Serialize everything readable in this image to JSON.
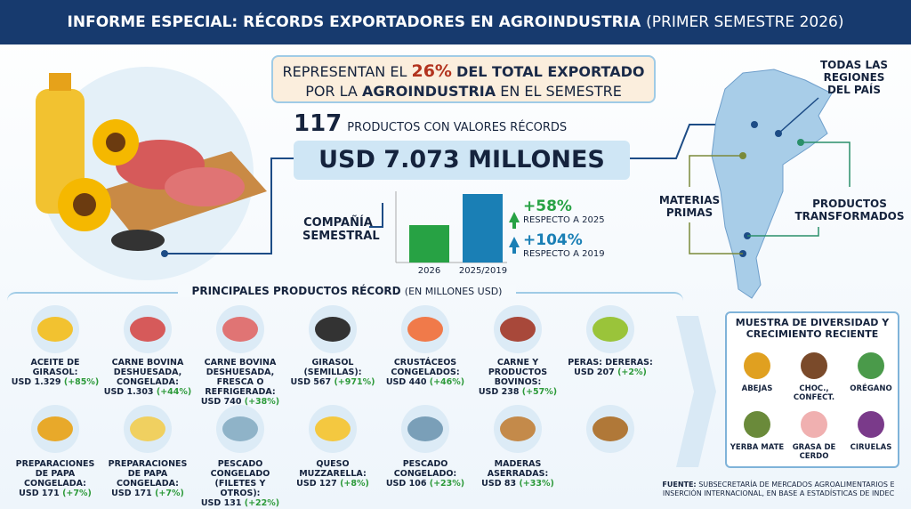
{
  "header": {
    "title": "INFORME ESPECIAL: RÉCORDS EXPORTADORES EN AGROINDUSTRIA",
    "subtitle": "(PRIMER SEMESTRE 2026)"
  },
  "highlight": {
    "line1": [
      "REPRESENTAN EL",
      "26%",
      "DEL TOTAL EXPORTADO"
    ],
    "line2": [
      "POR LA",
      "AGROINDUSTRIA",
      "EN EL SEMESTRE"
    ]
  },
  "summary": {
    "count": "117",
    "count_label": "PRODUCTOS CON VALORES RÉCORDS",
    "total": "USD 7.073 MILLONES"
  },
  "comparison": {
    "label": "COMPAÑÍA SEMESTRAL",
    "categories": [
      "2026",
      "2025/2019"
    ],
    "changes": [
      {
        "value": "+58%",
        "note": "RESPECTO A 2025"
      },
      {
        "value": "+104%",
        "note": "RESPECTO A 2019"
      }
    ]
  },
  "map": {
    "regions": "TODAS LAS REGIONES DEL PAÍS",
    "raw": "MATERIAS PRIMAS",
    "processed": "PRODUCTOS TRANSFORMADOS"
  },
  "products": {
    "title": "PRINCIPALES PRODUCTOS RÉCORD",
    "unit": "(EN MILLONES USD)",
    "items": [
      {
        "name": "ACEITE DE GIRASOL:",
        "value": "USD 1.329",
        "change": "(+85%)"
      },
      {
        "name": "CARNE BOVINA DESHUESADA, CONGELADA:",
        "value": "USD 1.303",
        "change": "(+44%)"
      },
      {
        "name": "CARNE BOVINA DESHUESADA, FRESCA O REFRIGERADA:",
        "value": "USD 740",
        "change": "(+38%)"
      },
      {
        "name": "GIRASOL (SEMILLAS):",
        "value": "USD 567",
        "change": "(+971%)"
      },
      {
        "name": "CRUSTÁCEOS CONGELADOS:",
        "value": "USD 440",
        "change": "(+46%)"
      },
      {
        "name": "CARNE Y PRODUCTOS BOVINOS:",
        "value": "USD 238",
        "change": "(+57%)"
      },
      {
        "name": "PERAS: DERERAS:",
        "value": "USD 207",
        "change": "(+2%)"
      },
      {
        "name": "PREPARACIONES DE PAPA CONGELADA:",
        "value": "USD 171",
        "change": "(+7%)"
      },
      {
        "name": "PREPARACIONES DE PAPA CONGELADA:",
        "value": "USD 171",
        "change": "(+7%)"
      },
      {
        "name": "PESCADO CONGELADO (FILETES Y OTROS):",
        "value": "USD 131",
        "change": "(+22%)"
      },
      {
        "name": "QUESO MUZZARELLA:",
        "value": "USD 127",
        "change": "(+8%)"
      },
      {
        "name": "PESCADO CONGELADO:",
        "value": "USD 106",
        "change": "(+23%)"
      },
      {
        "name": "MADERAS ASERRADAS:",
        "value": "USD 83",
        "change": "(+33%)"
      }
    ]
  },
  "diversity": {
    "title": "MUESTRA DE DIVERSIDAD Y CRECIMIENTO RECIENTE",
    "items": [
      "ABEJAS",
      "CHOC., CONFECT.",
      "ORÉGANO",
      "YERBA MATE",
      "GRASA DE CERDO",
      "CIRUELAS"
    ]
  },
  "source": {
    "label": "FUENTE:",
    "text": "SUBSECRETARÍA DE MERCADOS AGROALIMENTARIOS E INSERCIÓN INTERNACIONAL, EN BASE A ESTADÍSTICAS DE INDEC"
  }
}
